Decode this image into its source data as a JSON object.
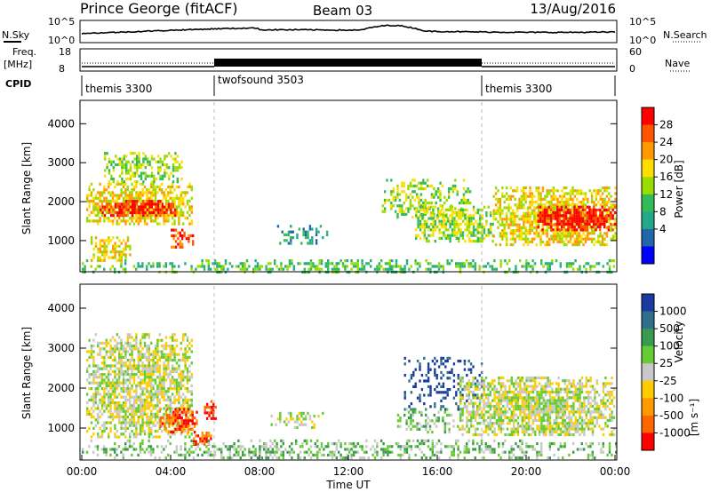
{
  "header": {
    "station": "Prince George (fitACF)",
    "beam": "Beam 03",
    "date": "13/Aug/2016"
  },
  "panels": {
    "nsky": {
      "label": "N.Sky",
      "left_ticks": [
        "10^5",
        "10^0"
      ],
      "right_ticks": [
        "10^5",
        "10^0"
      ],
      "right_label": "N.Search"
    },
    "freq": {
      "label_lines": [
        "Freq.",
        "[MHz]"
      ],
      "left_ticks": [
        "18",
        "8"
      ],
      "right_ticks": [
        "60",
        "0"
      ],
      "right_label": "Nave"
    },
    "cpid": {
      "label": "CPID",
      "segments": [
        "themis 3300",
        "twofsound 3503",
        "themis 3300"
      ]
    }
  },
  "colorbars": {
    "power": {
      "label": "Power [dB]",
      "ticks": [
        "28",
        "24",
        "20",
        "16",
        "12",
        "8",
        "4"
      ],
      "colors": [
        "#ff0000",
        "#ff5500",
        "#ff9900",
        "#ffdd00",
        "#99dd00",
        "#33bb55",
        "#22aa88",
        "#2266aa",
        "#0000ff"
      ]
    },
    "velocity": {
      "label_main": "Velocity",
      "label_unit": "[m s⁻¹]",
      "ticks": [
        "1000",
        "500",
        "100",
        "25",
        "-25",
        "-100",
        "-500",
        "-1000"
      ],
      "colors": [
        "#1a3aa0",
        "#2e6f8e",
        "#3a9a50",
        "#66cc33",
        "#c8c8c8",
        "#ffcc00",
        "#ff9900",
        "#ff6600",
        "#ff0000"
      ]
    }
  },
  "chart_data": [
    {
      "type": "heatmap",
      "name": "power",
      "ylabel": "Slant Range [km]",
      "yticks": [
        1000,
        2000,
        3000,
        4000
      ],
      "ylim": [
        200,
        4600
      ],
      "xlim": [
        0,
        24
      ],
      "xticks": [
        "00:00",
        "04:00",
        "08:00",
        "12:00",
        "16:00",
        "20:00",
        "00:00"
      ],
      "blobs": [
        {
          "t0": 0.2,
          "t1": 5.0,
          "r0": 1400,
          "r1": 2500,
          "level": 5,
          "density": 0.85
        },
        {
          "t0": 0.8,
          "t1": 4.2,
          "r0": 1650,
          "r1": 2050,
          "level": 8,
          "density": 0.8
        },
        {
          "t0": 1.0,
          "t1": 4.5,
          "r0": 2500,
          "r1": 3300,
          "level": 4,
          "density": 0.6
        },
        {
          "t0": 0.4,
          "t1": 2.2,
          "r0": 500,
          "r1": 1100,
          "level": 5,
          "density": 0.7
        },
        {
          "t0": 4.0,
          "t1": 5.0,
          "r0": 800,
          "r1": 1300,
          "level": 7,
          "density": 0.6
        },
        {
          "t0": 8.5,
          "t1": 11.0,
          "r0": 900,
          "r1": 1400,
          "level": 2,
          "density": 0.35
        },
        {
          "t0": 13.5,
          "t1": 17.5,
          "r0": 1600,
          "r1": 2600,
          "level": 4,
          "density": 0.45
        },
        {
          "t0": 15.0,
          "t1": 18.5,
          "r0": 1000,
          "r1": 1900,
          "level": 4,
          "density": 0.7
        },
        {
          "t0": 18.5,
          "t1": 24.0,
          "r0": 900,
          "r1": 2400,
          "level": 5,
          "density": 0.85
        },
        {
          "t0": 20.5,
          "t1": 24.0,
          "r0": 1300,
          "r1": 1900,
          "level": 8,
          "density": 0.9
        },
        {
          "t0": 0.0,
          "t1": 24.0,
          "r0": 200,
          "r1": 500,
          "level": 3,
          "density": 0.5
        }
      ]
    },
    {
      "type": "heatmap",
      "name": "velocity",
      "ylabel": "Slant Range [km]",
      "yticks": [
        1000,
        2000,
        3000,
        4000
      ],
      "ylim": [
        200,
        4600
      ],
      "xlim": [
        0,
        24
      ],
      "xticks": [
        "00:00",
        "04:00",
        "08:00",
        "12:00",
        "16:00",
        "20:00",
        "00:00"
      ],
      "xlabel": "Time UT",
      "blobs": [
        {
          "t0": 0.2,
          "t1": 5.0,
          "r0": 800,
          "r1": 3400,
          "level": 4,
          "density": 0.8
        },
        {
          "t0": 3.5,
          "t1": 5.2,
          "r0": 900,
          "r1": 1500,
          "level": 7,
          "density": 0.9
        },
        {
          "t0": 5.0,
          "t1": 5.8,
          "r0": 600,
          "r1": 900,
          "level": 7,
          "density": 0.85
        },
        {
          "t0": 5.5,
          "t1": 6.0,
          "r0": 1200,
          "r1": 1700,
          "level": 8,
          "density": 0.8
        },
        {
          "t0": 8.5,
          "t1": 11.0,
          "r0": 1000,
          "r1": 1400,
          "level": 4,
          "density": 0.4
        },
        {
          "t0": 14.5,
          "t1": 18.0,
          "r0": 1500,
          "r1": 2800,
          "level": 0,
          "density": 0.35
        },
        {
          "t0": 14.0,
          "t1": 17.0,
          "r0": 900,
          "r1": 1500,
          "level": 3,
          "density": 0.45
        },
        {
          "t0": 17.0,
          "t1": 24.0,
          "r0": 800,
          "r1": 2300,
          "level": 4,
          "density": 0.85
        },
        {
          "t0": 0.0,
          "t1": 24.0,
          "r0": 200,
          "r1": 700,
          "level": 3,
          "density": 0.45
        }
      ]
    }
  ]
}
